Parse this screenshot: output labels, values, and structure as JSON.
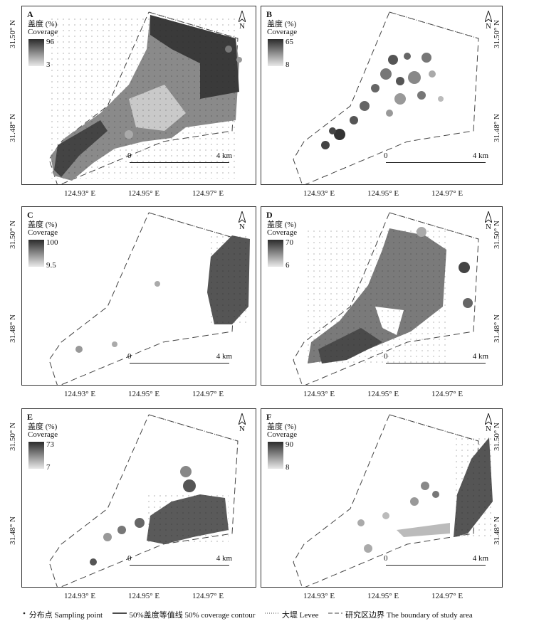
{
  "colorbar_title_cn": "盖度 (%)",
  "colorbar_title_en": "Coverage",
  "north_label": "N",
  "scale_start": "0",
  "scale_end": "4 km",
  "x_ticks": [
    "124.93° E",
    "124.95° E",
    "124.97° E"
  ],
  "y_ticks": [
    "31.50° N",
    "31.48° N"
  ],
  "panels": [
    {
      "label": "A",
      "max": "96",
      "min": "3"
    },
    {
      "label": "B",
      "max": "65",
      "min": "8"
    },
    {
      "label": "C",
      "max": "100",
      "min": "9.5"
    },
    {
      "label": "D",
      "max": "70",
      "min": "6"
    },
    {
      "label": "E",
      "max": "73",
      "min": "7"
    },
    {
      "label": "F",
      "max": "90",
      "min": "8"
    }
  ],
  "legend": {
    "sampling": "分布点 Sampling point",
    "contour": "50%盖度等值线 50% coverage contour",
    "levee": "大堤 Levee",
    "boundary": "研究区边界 The boundary of study area"
  },
  "colors": {
    "dark": "#2b2b2b",
    "light": "#e8e8e8"
  }
}
